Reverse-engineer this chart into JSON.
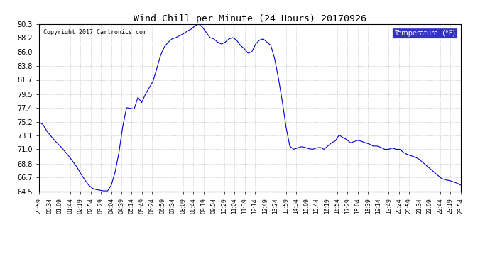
{
  "title": "Wind Chill per Minute (24 Hours) 20170926",
  "copyright": "Copyright 2017 Cartronics.com",
  "legend_label": "Temperature  (°F)",
  "y_min": 64.5,
  "y_max": 90.3,
  "y_ticks": [
    64.5,
    66.7,
    68.8,
    71.0,
    73.1,
    75.2,
    77.4,
    79.5,
    81.7,
    83.8,
    86.0,
    88.2,
    90.3
  ],
  "line_color": "#0000cc",
  "bg_color": "#ffffff",
  "grid_color": "#bbbbbb",
  "legend_bg": "#0000aa",
  "x_labels": [
    "23:59",
    "00:34",
    "01:09",
    "01:44",
    "02:19",
    "02:54",
    "03:29",
    "04:04",
    "04:39",
    "05:14",
    "05:49",
    "06:24",
    "06:59",
    "07:34",
    "08:09",
    "08:44",
    "09:19",
    "09:54",
    "10:29",
    "11:04",
    "11:39",
    "12:14",
    "12:49",
    "13:24",
    "13:59",
    "14:34",
    "15:09",
    "15:44",
    "16:19",
    "16:54",
    "17:29",
    "18:04",
    "18:39",
    "19:14",
    "19:49",
    "20:24",
    "20:59",
    "21:34",
    "22:09",
    "22:44",
    "23:19",
    "23:54"
  ],
  "data_y": [
    75.2,
    74.8,
    73.8,
    73.1,
    72.4,
    71.8,
    71.2,
    70.5,
    69.8,
    69.0,
    68.2,
    67.2,
    66.3,
    65.5,
    65.0,
    64.8,
    64.7,
    64.6,
    64.6,
    65.5,
    67.5,
    70.5,
    74.5,
    77.4,
    77.3,
    77.2,
    79.0,
    78.2,
    79.5,
    80.5,
    81.5,
    83.5,
    85.5,
    86.8,
    87.5,
    88.0,
    88.2,
    88.5,
    88.8,
    89.2,
    89.5,
    90.0,
    90.3,
    89.8,
    89.0,
    88.2,
    88.0,
    87.5,
    87.2,
    87.5,
    88.0,
    88.2,
    87.8,
    87.0,
    86.5,
    85.8,
    86.0,
    87.2,
    87.8,
    88.0,
    87.5,
    87.0,
    85.0,
    82.0,
    78.5,
    74.5,
    71.5,
    71.0,
    71.2,
    71.4,
    71.3,
    71.1,
    71.0,
    71.2,
    71.3,
    71.0,
    71.5,
    72.0,
    72.3,
    73.2,
    72.8,
    72.5,
    72.0,
    72.2,
    72.4,
    72.2,
    72.0,
    71.8,
    71.5,
    71.5,
    71.3,
    71.0,
    71.0,
    71.2,
    71.0,
    71.0,
    70.5,
    70.2,
    70.0,
    69.8,
    69.5,
    69.0,
    68.5,
    68.0,
    67.5,
    67.0,
    66.5,
    66.3,
    66.2,
    66.0,
    65.8,
    65.5
  ]
}
